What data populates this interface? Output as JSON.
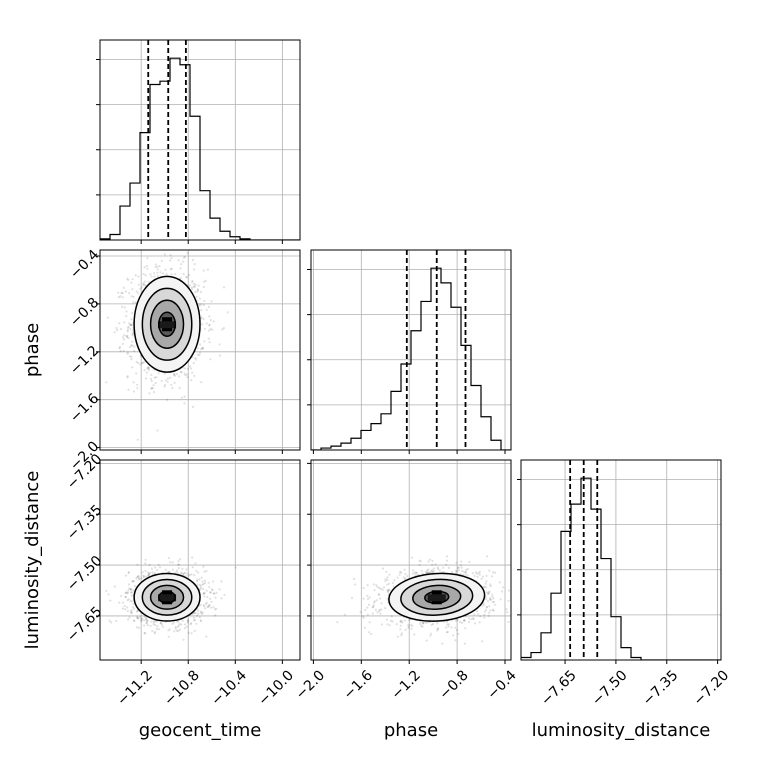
{
  "chart_data": {
    "type": "corner",
    "parameters": [
      "geocent_time",
      "phase",
      "luminosity_distance"
    ],
    "axis_labels": {
      "geocent_time": "geocent_time",
      "phase": "phase",
      "luminosity_distance": "luminosity_distance"
    },
    "ranges": {
      "geocent_time": [
        -11.55,
        -9.85
      ],
      "phase": [
        -2.02,
        -0.35
      ],
      "luminosity_distance": [
        -7.78,
        -7.19
      ]
    },
    "ticks": {
      "geocent_time": [
        "−11.2",
        "−10.8",
        "−10.4",
        "−10.0"
      ],
      "phase": [
        "−2.0",
        "−1.6",
        "−1.2",
        "−0.8",
        "−0.4"
      ],
      "luminosity_distance": [
        "−7.65",
        "−7.50",
        "−7.35",
        "−7.20"
      ]
    },
    "tick_values": {
      "geocent_time": [
        -11.2,
        -10.8,
        -10.4,
        -10.0
      ],
      "phase": [
        -2.0,
        -1.6,
        -1.2,
        -0.8,
        -0.4
      ],
      "luminosity_distance": [
        -7.65,
        -7.5,
        -7.35,
        -7.2
      ]
    },
    "quantiles": {
      "geocent_time": [
        -11.14,
        -10.97,
        -10.82
      ],
      "phase": [
        -1.22,
        -0.97,
        -0.73
      ],
      "luminosity_distance": [
        -7.635,
        -7.595,
        -7.555
      ]
    },
    "histograms": {
      "geocent_time": {
        "bin_edges": [
          -11.55,
          -11.465,
          -11.38,
          -11.295,
          -11.21,
          -11.125,
          -11.04,
          -10.955,
          -10.87,
          -10.785,
          -10.7,
          -10.615,
          -10.53,
          -10.445,
          -10.36,
          -10.275,
          -10.19,
          -10.105,
          -10.02,
          -9.935,
          -9.85
        ],
        "counts": [
          1,
          5,
          31,
          52,
          98,
          142,
          145,
          166,
          160,
          113,
          45,
          20,
          8,
          3,
          1,
          0,
          0,
          0,
          0,
          0
        ]
      },
      "phase": {
        "bin_edges": [
          -2.02,
          -1.9365,
          -1.853,
          -1.7695,
          -1.686,
          -1.6025,
          -1.519,
          -1.4355,
          -1.352,
          -1.2685,
          -1.185,
          -1.1015,
          -1.018,
          -0.9345,
          -0.851,
          -0.7675,
          -0.684,
          -0.6005,
          -0.517,
          -0.4335,
          -0.35
        ],
        "counts": [
          0,
          2,
          4,
          7,
          12,
          20,
          27,
          37,
          60,
          88,
          122,
          152,
          186,
          171,
          146,
          107,
          66,
          34,
          10,
          0
        ]
      },
      "luminosity_distance": {
        "bin_edges": [
          -7.78,
          -7.7505,
          -7.721,
          -7.6915,
          -7.662,
          -7.6325,
          -7.603,
          -7.5735,
          -7.544,
          -7.5145,
          -7.485,
          -7.4555,
          -7.426,
          -7.3965,
          -7.367,
          -7.3375,
          -7.308,
          -7.2785,
          -7.249,
          -7.2195,
          -7.19
        ],
        "counts": [
          2,
          6,
          22,
          54,
          104,
          126,
          147,
          122,
          82,
          35,
          10,
          2,
          0,
          0,
          0,
          0,
          0,
          0,
          0,
          0
        ]
      }
    },
    "pairs": [
      {
        "x": "geocent_time",
        "y": "phase",
        "mean": [
          -10.98,
          -0.97
        ],
        "sd": [
          0.14,
          0.2
        ],
        "rho": 0.0
      },
      {
        "x": "geocent_time",
        "y": "luminosity_distance",
        "mean": [
          -10.98,
          -7.595
        ],
        "sd": [
          0.14,
          0.035
        ],
        "rho": 0.0
      },
      {
        "x": "phase",
        "y": "luminosity_distance",
        "mean": [
          -0.97,
          -7.595
        ],
        "sd": [
          0.2,
          0.035
        ],
        "rho": 0.1
      }
    ],
    "contour_levels_sigma": [
      0.5,
      1.0,
      1.5,
      2.0
    ],
    "grid": true,
    "colors": {
      "line": "#000000",
      "grid": "#b0b0b0",
      "points": "#000000",
      "frame": "#000000"
    }
  }
}
